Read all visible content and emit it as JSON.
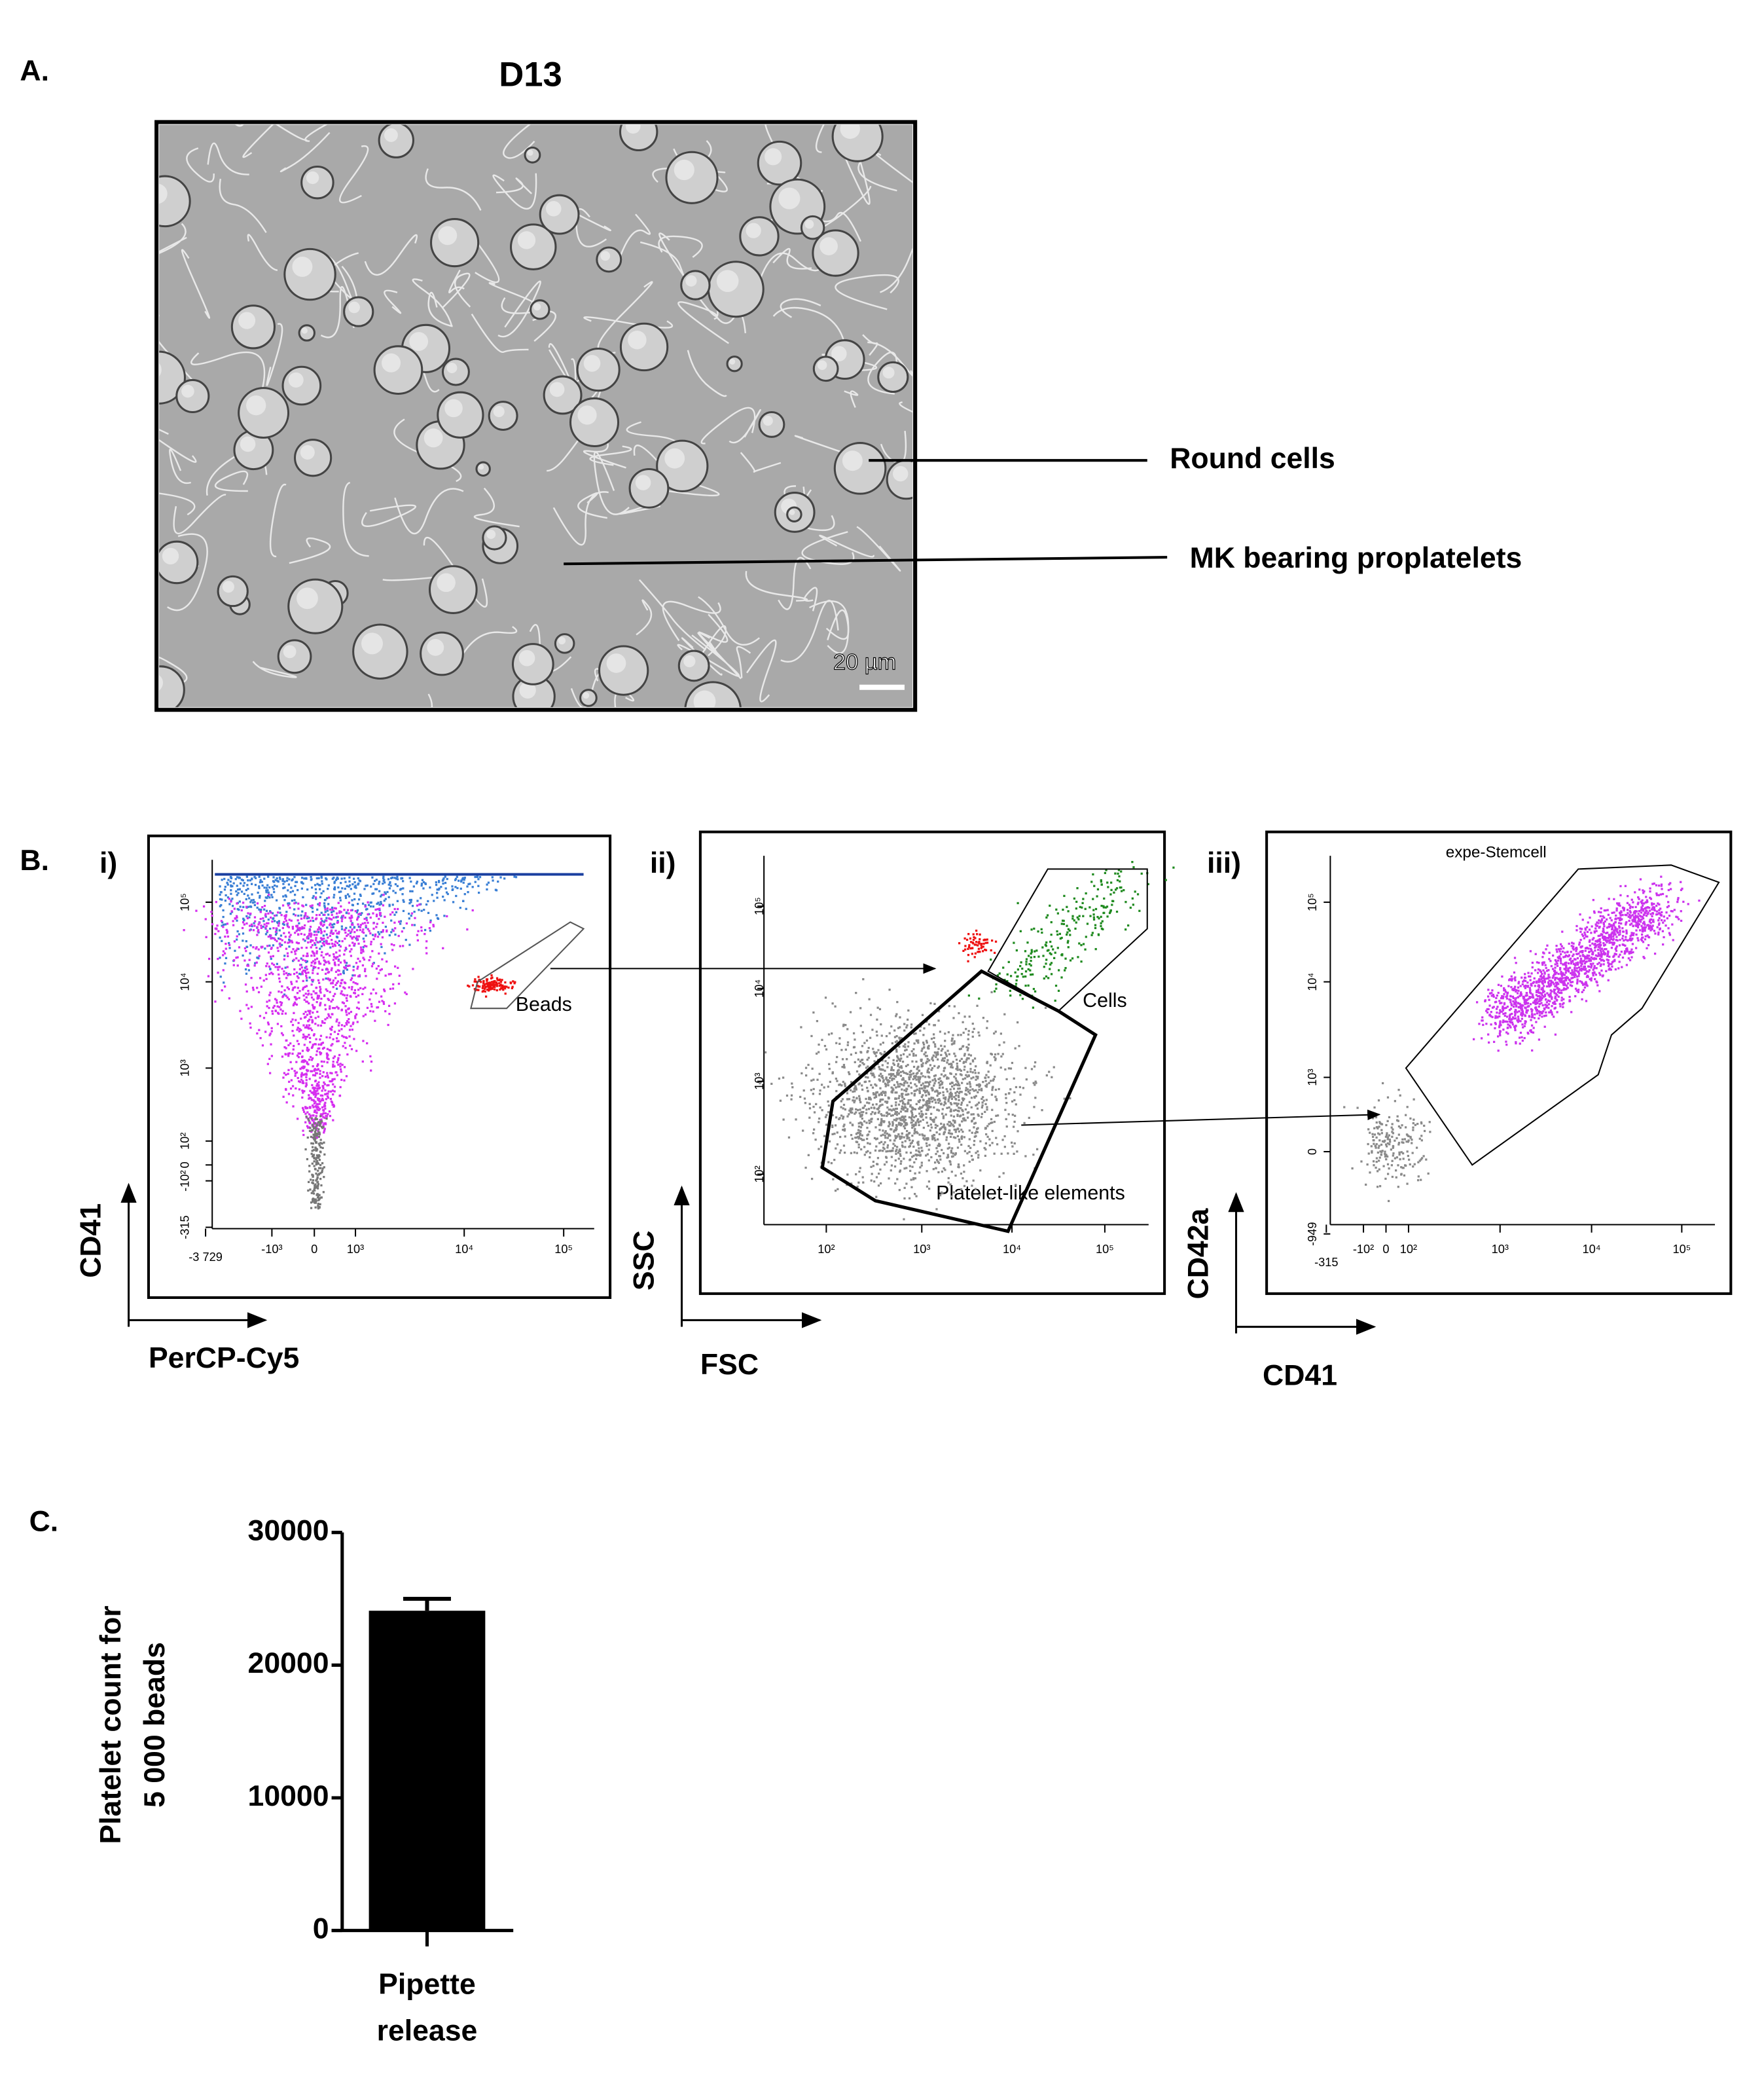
{
  "panel_a": {
    "label": "A.",
    "title": "D13",
    "scale_bar": "20 µm",
    "annotations": [
      "Round cells",
      "MK bearing proplatelets"
    ]
  },
  "panel_b": {
    "label": "B.",
    "plots": [
      {
        "label": "i)",
        "y_axis": "CD41",
        "x_axis": "PerCP-Cy5",
        "yticks": [
          "10⁵",
          "10⁴",
          "10³",
          "10²",
          "0",
          "-10²",
          "-315"
        ],
        "xticks": [
          "-3 729",
          "-10³",
          "0",
          "10³",
          "10⁴",
          "10⁵"
        ],
        "gates": [
          "Beads"
        ]
      },
      {
        "label": "ii)",
        "y_axis": "SSC",
        "x_axis": "FSC",
        "yticks": [
          "10⁵",
          "10⁴",
          "10³",
          "10²"
        ],
        "xticks": [
          "10²",
          "10³",
          "10⁴",
          "10⁵"
        ],
        "gates": [
          "Cells",
          "Platelet-like elements"
        ]
      },
      {
        "label": "iii)",
        "title": "expe-Stemcell",
        "y_axis": "CD42a",
        "x_axis": "CD41",
        "yticks": [
          "10⁵",
          "10⁴",
          "10³",
          "0",
          "-949"
        ],
        "xticks": [
          "-315",
          "-10²",
          "0",
          "10²",
          "10³",
          "10⁴",
          "10⁵"
        ]
      }
    ]
  },
  "panel_c": {
    "label": "C."
  },
  "chart_data": {
    "type": "bar",
    "categories": [
      "Pipette release"
    ],
    "values": [
      24100
    ],
    "errors": [
      900
    ],
    "color": "#000000",
    "y_label": [
      "Platelet count for",
      "5 000 beads"
    ],
    "ylim": [
      0,
      30000
    ],
    "yticks": [
      0,
      10000,
      20000,
      30000
    ]
  }
}
